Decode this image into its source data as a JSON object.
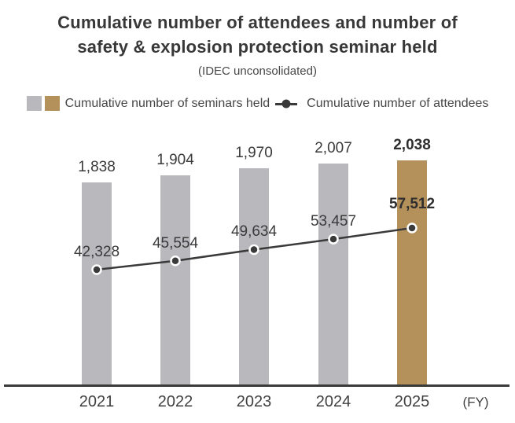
{
  "chart_data": {
    "type": "bar+line",
    "title": "Cumulative number of attendees and number of safety & explosion protection seminar held",
    "title_lines": [
      "Cumulative number of attendees and number of",
      "safety & explosion protection seminar held"
    ],
    "subtitle": "(IDEC unconsolidated)",
    "categories": [
      "2021",
      "2022",
      "2023",
      "2024",
      "2025"
    ],
    "x_axis_unit_label": "(FY)",
    "series": [
      {
        "name": "Cumulative number of seminars held",
        "type": "bar",
        "values": [
          1838,
          1904,
          1970,
          2007,
          2038
        ]
      },
      {
        "name": "Cumulative number of attendees",
        "type": "line",
        "values": [
          42328,
          45554,
          49634,
          53457,
          57512
        ]
      }
    ],
    "value_labels": {
      "bar": [
        "1,838",
        "1,904",
        "1,970",
        "2,007",
        "2,038"
      ],
      "line": [
        "42,328",
        "45,554",
        "49,634",
        "53,457",
        "57,512"
      ]
    },
    "highlight_category": "2025",
    "colors": {
      "bar": "#b9b9bd",
      "bar_highlight": "#b4905a",
      "line": "#3a3a3a",
      "dot_fill": "#3a3a3a",
      "dot_ring": "#ffffff",
      "axis": "#3a3a3a",
      "text": "#3a3a3a"
    },
    "legend_position": "top",
    "grid": false,
    "y_axis_visible": false,
    "bar_ylim": [
      0,
      2038
    ]
  }
}
